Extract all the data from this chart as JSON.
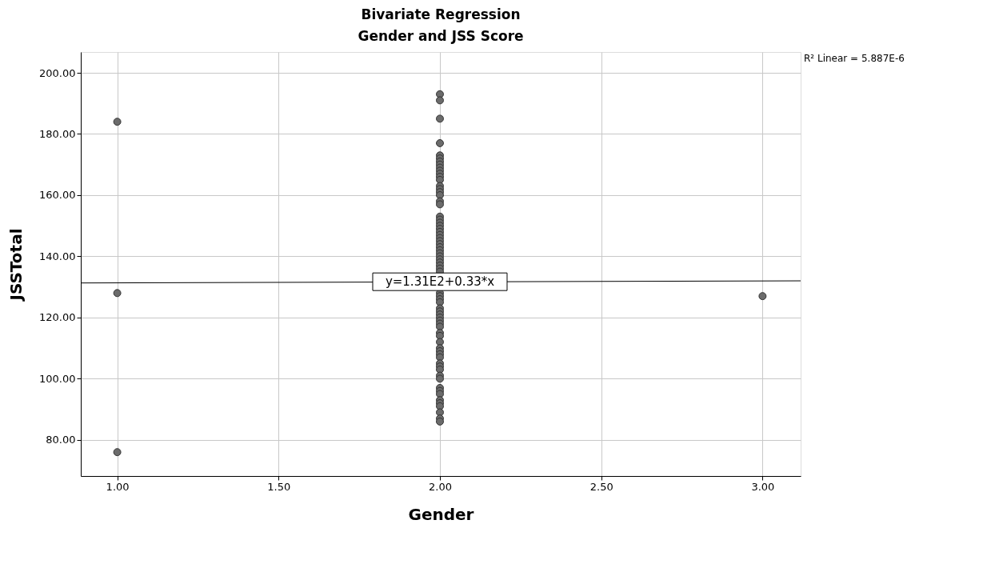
{
  "chart_data": {
    "type": "scatter",
    "title": "Bivariate Regression",
    "subtitle": "Gender and JSS Score",
    "xlabel": "Gender",
    "ylabel": "JSSTotal",
    "series": [
      {
        "type": "scatter",
        "marker": "circle",
        "color": "#6b6b6b",
        "x": [
          1,
          1,
          1,
          3,
          2,
          2,
          2,
          2,
          2,
          2,
          2,
          2,
          2,
          2,
          2,
          2,
          2,
          2,
          2,
          2,
          2,
          2,
          2,
          2,
          2,
          2,
          2,
          2,
          2,
          2,
          2,
          2,
          2,
          2,
          2,
          2,
          2,
          2,
          2,
          2,
          2,
          2,
          2,
          2,
          2,
          2,
          2,
          2,
          2,
          2,
          2,
          2,
          2,
          2,
          2,
          2,
          2,
          2,
          2,
          2,
          2,
          2,
          2,
          2,
          2,
          2,
          2,
          2,
          2,
          2,
          2,
          2,
          2,
          2
        ],
        "values": [
          184,
          128,
          76,
          127,
          193,
          191,
          185,
          177,
          173,
          172,
          171,
          170,
          169,
          168,
          167,
          166,
          165,
          163,
          162,
          161,
          160,
          158,
          157,
          153,
          152,
          151,
          150,
          149,
          148,
          147,
          146,
          145,
          144,
          143,
          142,
          141,
          140,
          139,
          138,
          137,
          136,
          135,
          128,
          127,
          126,
          125,
          123,
          122,
          121,
          120,
          119,
          118,
          117,
          115,
          114,
          112,
          110,
          109,
          108,
          107,
          105,
          104,
          103,
          101,
          100,
          97,
          96,
          95,
          93,
          92,
          91,
          89,
          87,
          86
        ]
      },
      {
        "type": "line",
        "color": "#000000",
        "x": [
          0.887,
          3.118
        ],
        "values": [
          131.3,
          132.0
        ]
      }
    ],
    "annotations": [
      {
        "text": "y=1.31E2+0.33*x",
        "x": 2.0,
        "y": 131.7
      },
      "R² Linear = 5.887E-6"
    ],
    "xlim": [
      0.887,
      3.118
    ],
    "ylim": [
      68.2,
      206.8
    ],
    "xticks": [
      {
        "value": 1,
        "label": "1.00"
      },
      {
        "value": 1.5,
        "label": "1.50"
      },
      {
        "value": 2,
        "label": "2.00"
      },
      {
        "value": 2.5,
        "label": "2.50"
      },
      {
        "value": 3,
        "label": "3.00"
      }
    ],
    "yticks": [
      {
        "value": 80,
        "label": "80.00"
      },
      {
        "value": 100,
        "label": "100.00"
      },
      {
        "value": 120,
        "label": "120.00"
      },
      {
        "value": 140,
        "label": "140.00"
      },
      {
        "value": 160,
        "label": "160.00"
      },
      {
        "value": 180,
        "label": "180.00"
      },
      {
        "value": 200,
        "label": "200.00"
      }
    ],
    "grid": true,
    "line_style": "solid"
  }
}
